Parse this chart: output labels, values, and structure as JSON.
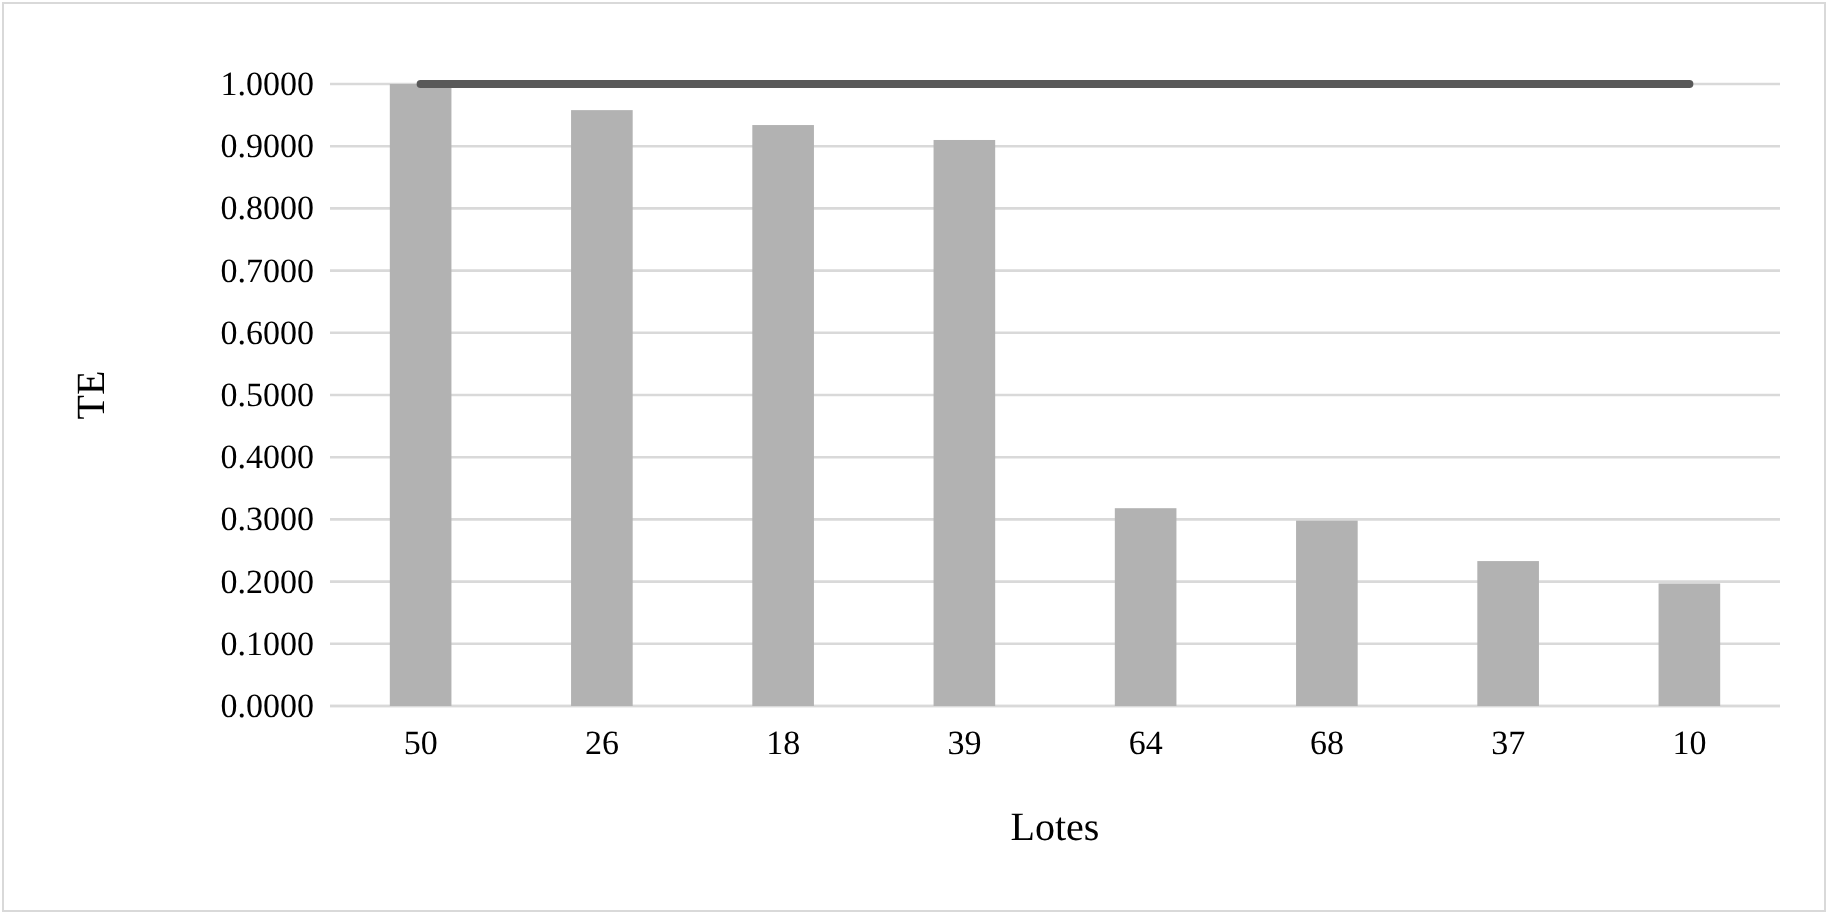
{
  "chart_data": {
    "type": "bar",
    "xlabel": "Lotes",
    "ylabel": "TE",
    "categories": [
      "50",
      "26",
      "18",
      "39",
      "64",
      "68",
      "37",
      "10"
    ],
    "series": [
      {
        "color": "#b2b2b2",
        "values": [
          1.0,
          0.958,
          0.934,
          0.91,
          0.318,
          0.298,
          0.233,
          0.197
        ]
      },
      {
        "type": "line",
        "color": "#595959",
        "values": [
          1.0,
          1.0,
          1.0,
          1.0,
          1.0,
          1.0,
          1.0,
          1.0
        ]
      }
    ],
    "ylim": [
      0,
      1
    ],
    "yticks": [
      {
        "value": 0,
        "label": "0.0000"
      },
      {
        "value": 0.1,
        "label": "0.1000"
      },
      {
        "value": 0.2,
        "label": "0.2000"
      },
      {
        "value": 0.3,
        "label": "0.3000"
      },
      {
        "value": 0.4,
        "label": "0.4000"
      },
      {
        "value": 0.5,
        "label": "0.5000"
      },
      {
        "value": 0.6,
        "label": "0.6000"
      },
      {
        "value": 0.7,
        "label": "0.7000"
      },
      {
        "value": 0.8,
        "label": "0.8000"
      },
      {
        "value": 0.9,
        "label": "0.9000"
      },
      {
        "value": 1,
        "label": "1.0000"
      }
    ],
    "grid": "y"
  }
}
